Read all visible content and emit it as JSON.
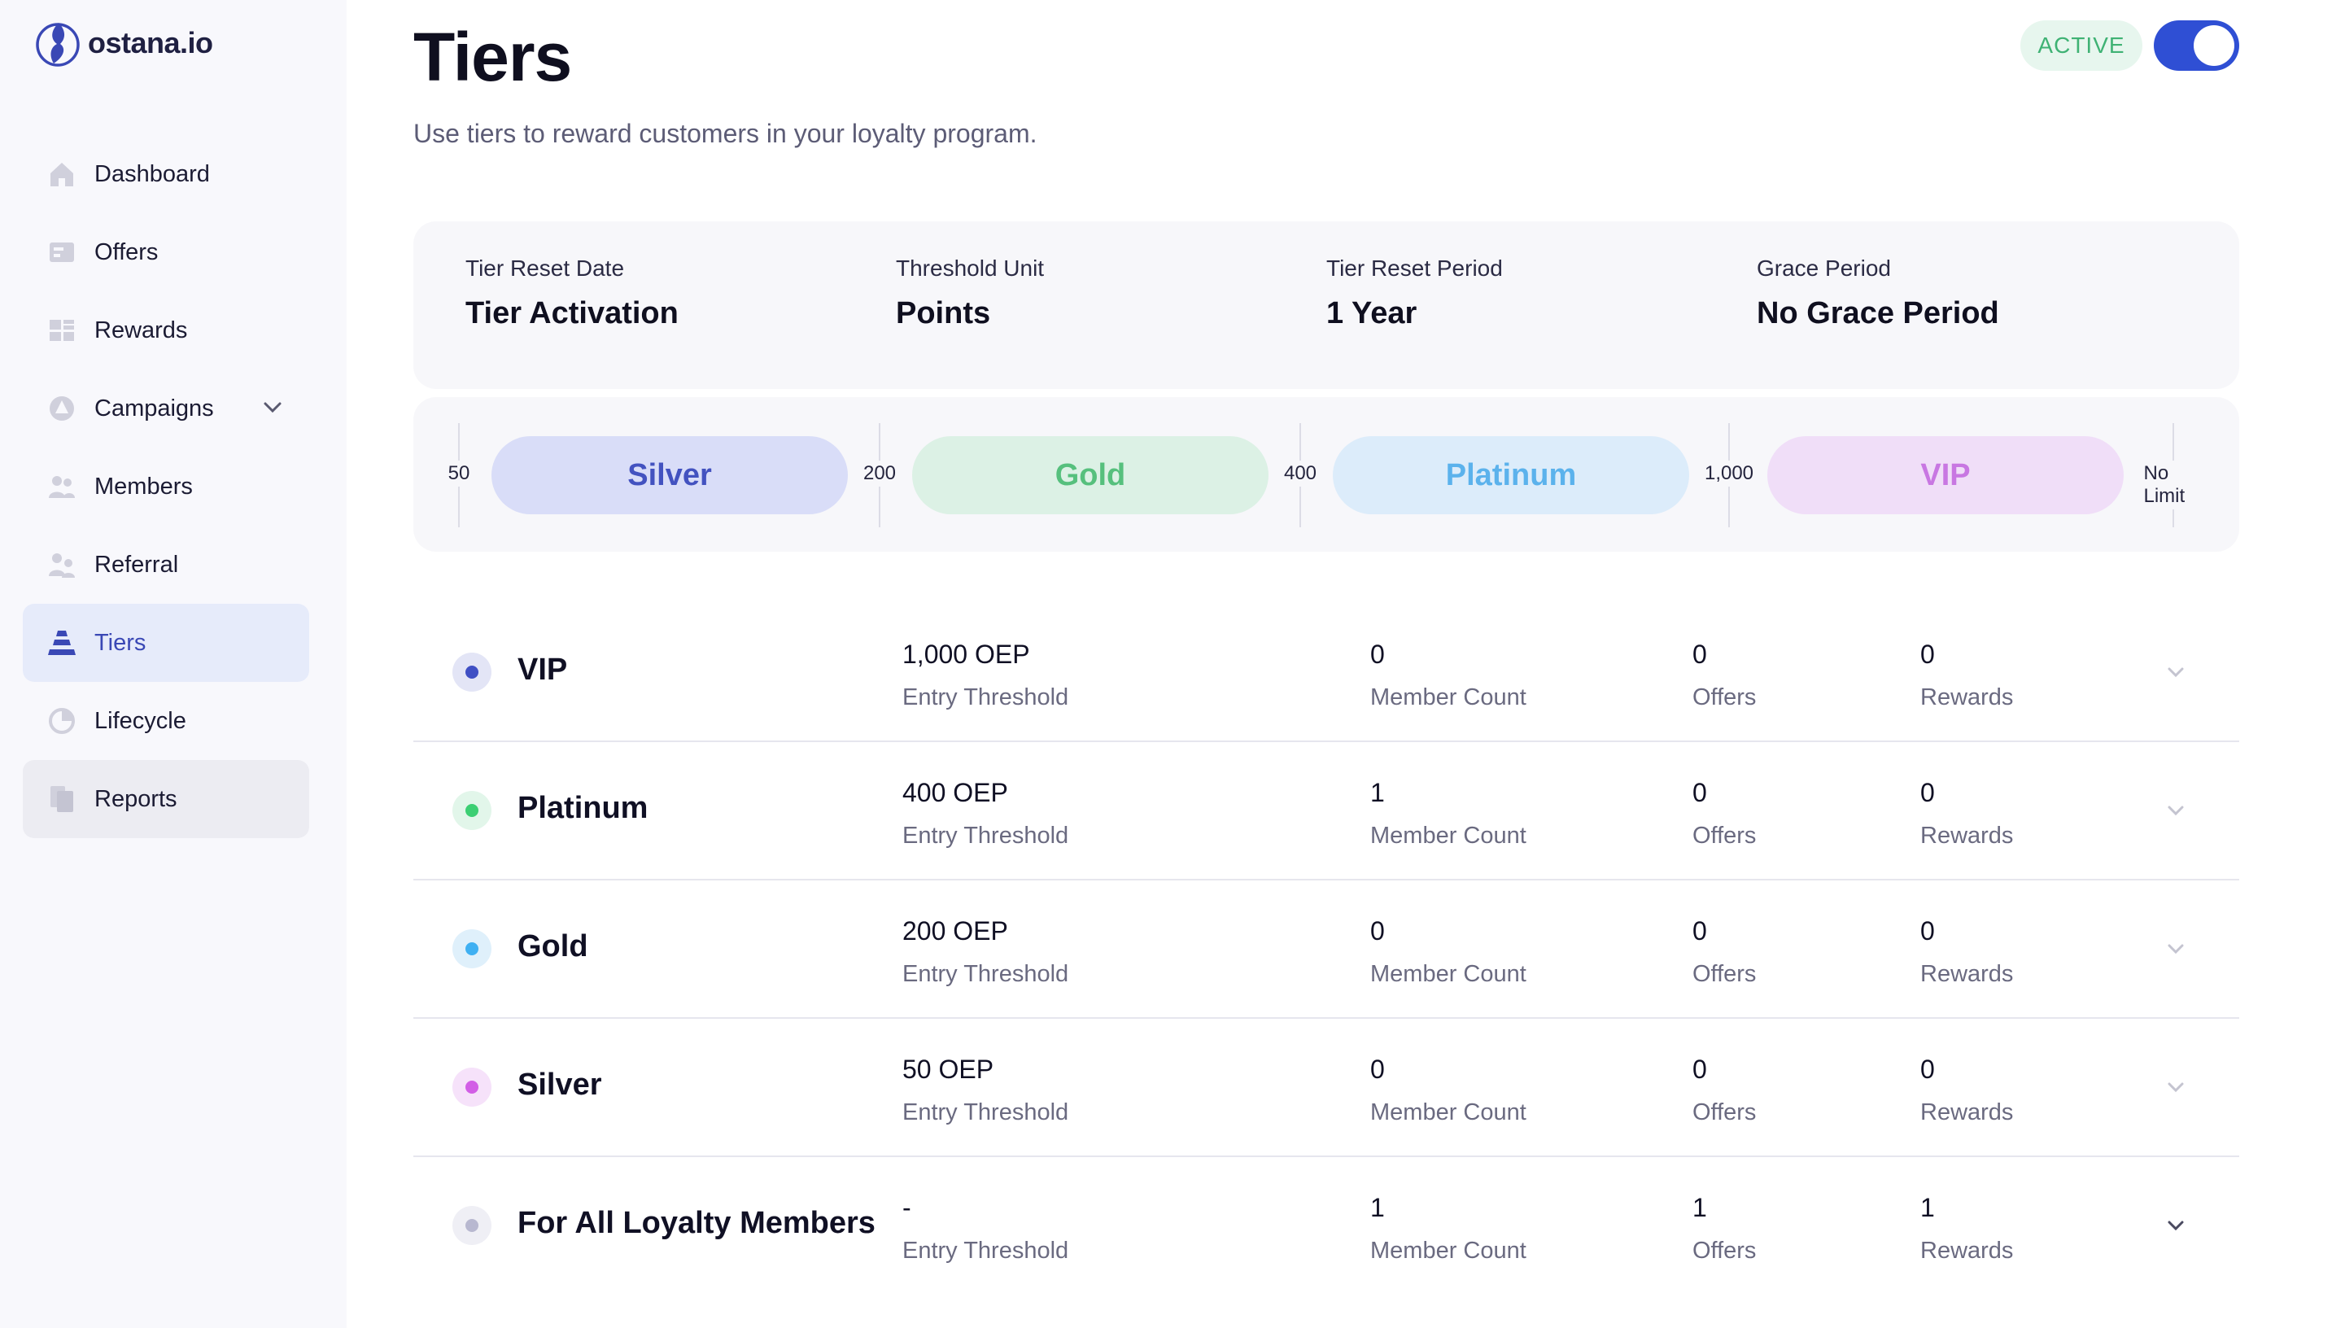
{
  "app": {
    "logo_text": "ostana.io"
  },
  "sidebar": {
    "items": [
      {
        "id": "dashboard",
        "label": "Dashboard",
        "icon": "home-icon"
      },
      {
        "id": "offers",
        "label": "Offers",
        "icon": "offers-icon"
      },
      {
        "id": "rewards",
        "label": "Rewards",
        "icon": "rewards-icon"
      },
      {
        "id": "campaigns",
        "label": "Campaigns",
        "icon": "campaigns-icon"
      },
      {
        "id": "members",
        "label": "Members",
        "icon": "members-icon"
      },
      {
        "id": "referral",
        "label": "Referral",
        "icon": "referral-icon"
      },
      {
        "id": "tiers",
        "label": "Tiers",
        "icon": "tiers-icon"
      },
      {
        "id": "lifecycle",
        "label": "Lifecycle",
        "icon": "lifecycle-icon"
      },
      {
        "id": "reports",
        "label": "Reports",
        "icon": "reports-icon"
      }
    ]
  },
  "header": {
    "title": "Tiers",
    "subtitle": "Use tiers to reward customers in your loyalty program.",
    "status": "ACTIVE"
  },
  "settings": [
    {
      "label": "Tier Reset Date",
      "value": "Tier Activation"
    },
    {
      "label": "Threshold Unit",
      "value": "Points"
    },
    {
      "label": "Tier Reset Period",
      "value": "1 Year"
    },
    {
      "label": "Grace Period",
      "value": "No Grace Period"
    }
  ],
  "track": {
    "ticks": [
      "50",
      "200",
      "400",
      "1,000",
      "No Limit"
    ],
    "pills": [
      {
        "label": "Silver",
        "bg": "#d9ddf8",
        "fg": "#4352c0"
      },
      {
        "label": "Gold",
        "bg": "#dcf1e5",
        "fg": "#56c07d"
      },
      {
        "label": "Platinum",
        "bg": "#dcecfa",
        "fg": "#5bb2ec"
      },
      {
        "label": "VIP",
        "bg": "#f0def8",
        "fg": "#c877e2"
      }
    ]
  },
  "tiers": [
    {
      "name": "VIP",
      "threshold": "1,000 OEP",
      "threshold_label": "Entry Threshold",
      "members": "0",
      "members_label": "Member Count",
      "offers": "0",
      "offers_label": "Offers",
      "rewards": "0",
      "rewards_label": "Rewards",
      "dot": "#3f4fc4",
      "dot_bg": "#e3e5f6"
    },
    {
      "name": "Platinum",
      "threshold": "400 OEP",
      "threshold_label": "Entry Threshold",
      "members": "1",
      "members_label": "Member Count",
      "offers": "0",
      "offers_label": "Offers",
      "rewards": "0",
      "rewards_label": "Rewards",
      "dot": "#3ccf73",
      "dot_bg": "#e2f6ea"
    },
    {
      "name": "Gold",
      "threshold": "200 OEP",
      "threshold_label": "Entry Threshold",
      "members": "0",
      "members_label": "Member Count",
      "offers": "0",
      "offers_label": "Offers",
      "rewards": "0",
      "rewards_label": "Rewards",
      "dot": "#3fb0f2",
      "dot_bg": "#dff0fb"
    },
    {
      "name": "Silver",
      "threshold": "50 OEP",
      "threshold_label": "Entry Threshold",
      "members": "0",
      "members_label": "Member Count",
      "offers": "0",
      "offers_label": "Offers",
      "rewards": "0",
      "rewards_label": "Rewards",
      "dot": "#d25ee6",
      "dot_bg": "#f6e2fa"
    },
    {
      "name": "For All Loyalty Members",
      "threshold": "-",
      "threshold_label": "Entry Threshold",
      "members": "1",
      "members_label": "Member Count",
      "offers": "1",
      "offers_label": "Offers",
      "rewards": "1",
      "rewards_label": "Rewards",
      "dot": "#b8b8d0",
      "dot_bg": "#efeff5"
    }
  ]
}
